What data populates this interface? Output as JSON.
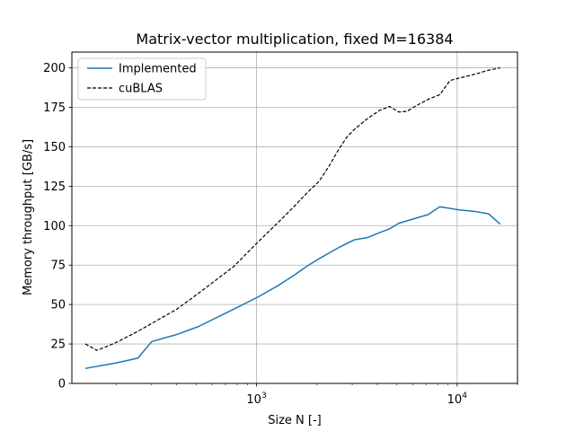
{
  "chart_data": {
    "type": "line",
    "title": "Matrix-vector multiplication, fixed M=16384",
    "xlabel": "Size N [-]",
    "ylabel": "Memory throughput [GB/s]",
    "xscale": "log",
    "xlim": [
      120,
      20000
    ],
    "ylim": [
      0,
      210
    ],
    "yticks": [
      0,
      25,
      50,
      75,
      100,
      125,
      150,
      175,
      200
    ],
    "xticks": [
      {
        "value": 1000,
        "base": "10",
        "exp": "3"
      },
      {
        "value": 10000,
        "base": "10",
        "exp": "4"
      }
    ],
    "grid": true,
    "legend_position": "top-left",
    "series": [
      {
        "name": "Implemented",
        "color": "#1f77b4",
        "style": "solid",
        "x": [
          140,
          200,
          256,
          300,
          400,
          512,
          768,
          1024,
          1280,
          1536,
          1792,
          2048,
          2560,
          3072,
          3584,
          4096,
          4608,
          5120,
          6144,
          7168,
          8192,
          10240,
          12288,
          14336,
          16384
        ],
        "y": [
          9.5,
          13,
          16,
          26.5,
          31,
          36,
          47,
          55,
          62,
          68.5,
          74.5,
          79,
          86,
          91,
          92.5,
          95.5,
          98,
          101.5,
          104.5,
          107,
          112,
          110,
          109,
          107.5,
          101
        ]
      },
      {
        "name": "cuBLAS",
        "color": "#000000",
        "style": "dashed",
        "x": [
          140,
          160,
          180,
          200,
          256,
          300,
          400,
          512,
          768,
          1024,
          1280,
          1536,
          1792,
          2048,
          2304,
          2560,
          2816,
          3072,
          3584,
          4096,
          4608,
          5120,
          5632,
          6144,
          7168,
          8192,
          9216,
          10240,
          12288,
          14336,
          16384
        ],
        "y": [
          25,
          21,
          23.5,
          26,
          33,
          38,
          47,
          57,
          74,
          90,
          102,
          112,
          121,
          128,
          138,
          148,
          156,
          161,
          168,
          173,
          175.5,
          172,
          172.5,
          175.5,
          180,
          183,
          192,
          193.5,
          196,
          198.5,
          200
        ]
      }
    ]
  }
}
